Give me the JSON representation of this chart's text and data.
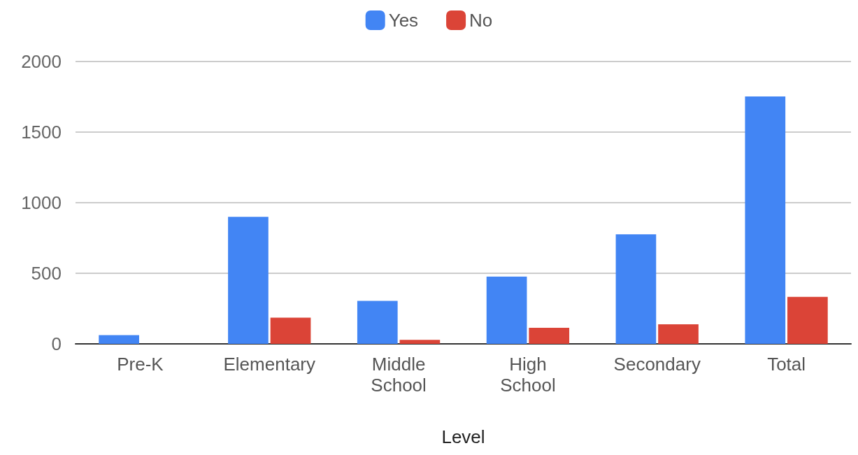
{
  "chart_data": {
    "type": "bar",
    "xlabel": "Level",
    "categories": [
      "Pre-K",
      "Elementary",
      "Middle\nSchool",
      "High\nSchool",
      "Secondary",
      "Total"
    ],
    "series": [
      {
        "name": "Yes",
        "color": "#4285f4",
        "values": [
          62,
          900,
          305,
          476,
          776,
          1752
        ]
      },
      {
        "name": "No",
        "color": "#db4437",
        "values": [
          0,
          186,
          29,
          114,
          138,
          333
        ]
      }
    ],
    "ylim": [
      0,
      2000
    ],
    "yticks": [
      0,
      500,
      1000,
      1500,
      2000
    ],
    "grid": "y",
    "legend": "top"
  }
}
